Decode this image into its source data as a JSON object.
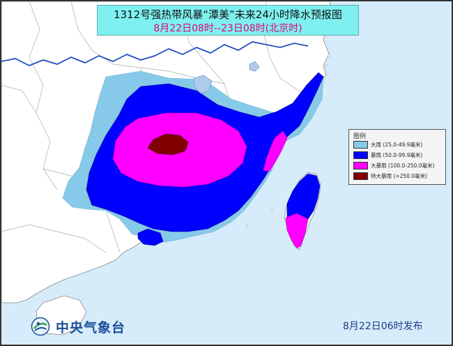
{
  "title": {
    "line1": "1312号强热带风暴“潭美”未来24小时降水预报图",
    "line2": "8月22日08时--23日08时(北京时)"
  },
  "legend": {
    "title": "图例",
    "items": [
      {
        "label": "大雨 (25.0-49.9毫米)",
        "color": "#87c9e8"
      },
      {
        "label": "暴雨 (50.0-99.9毫米)",
        "color": "#0000ff"
      },
      {
        "label": "大暴雨 (100.0-250.0毫米)",
        "color": "#ff00ff"
      },
      {
        "label": "特大暴雨 (>250.0毫米)",
        "color": "#800000"
      }
    ]
  },
  "logo": {
    "text": "中央气象台"
  },
  "issue_time": "8月22日06时发布",
  "colors": {
    "sea": "#d6ecfa",
    "land": "#ffffff",
    "heavy_rain": "#87c9e8",
    "rainstorm": "#0000ff",
    "heavy_rainstorm": "#ff00ff",
    "extreme_rainstorm": "#800000",
    "river": "#1f4fbf",
    "title_bg": "#7ff0f0",
    "title_date": "#e4007f"
  }
}
